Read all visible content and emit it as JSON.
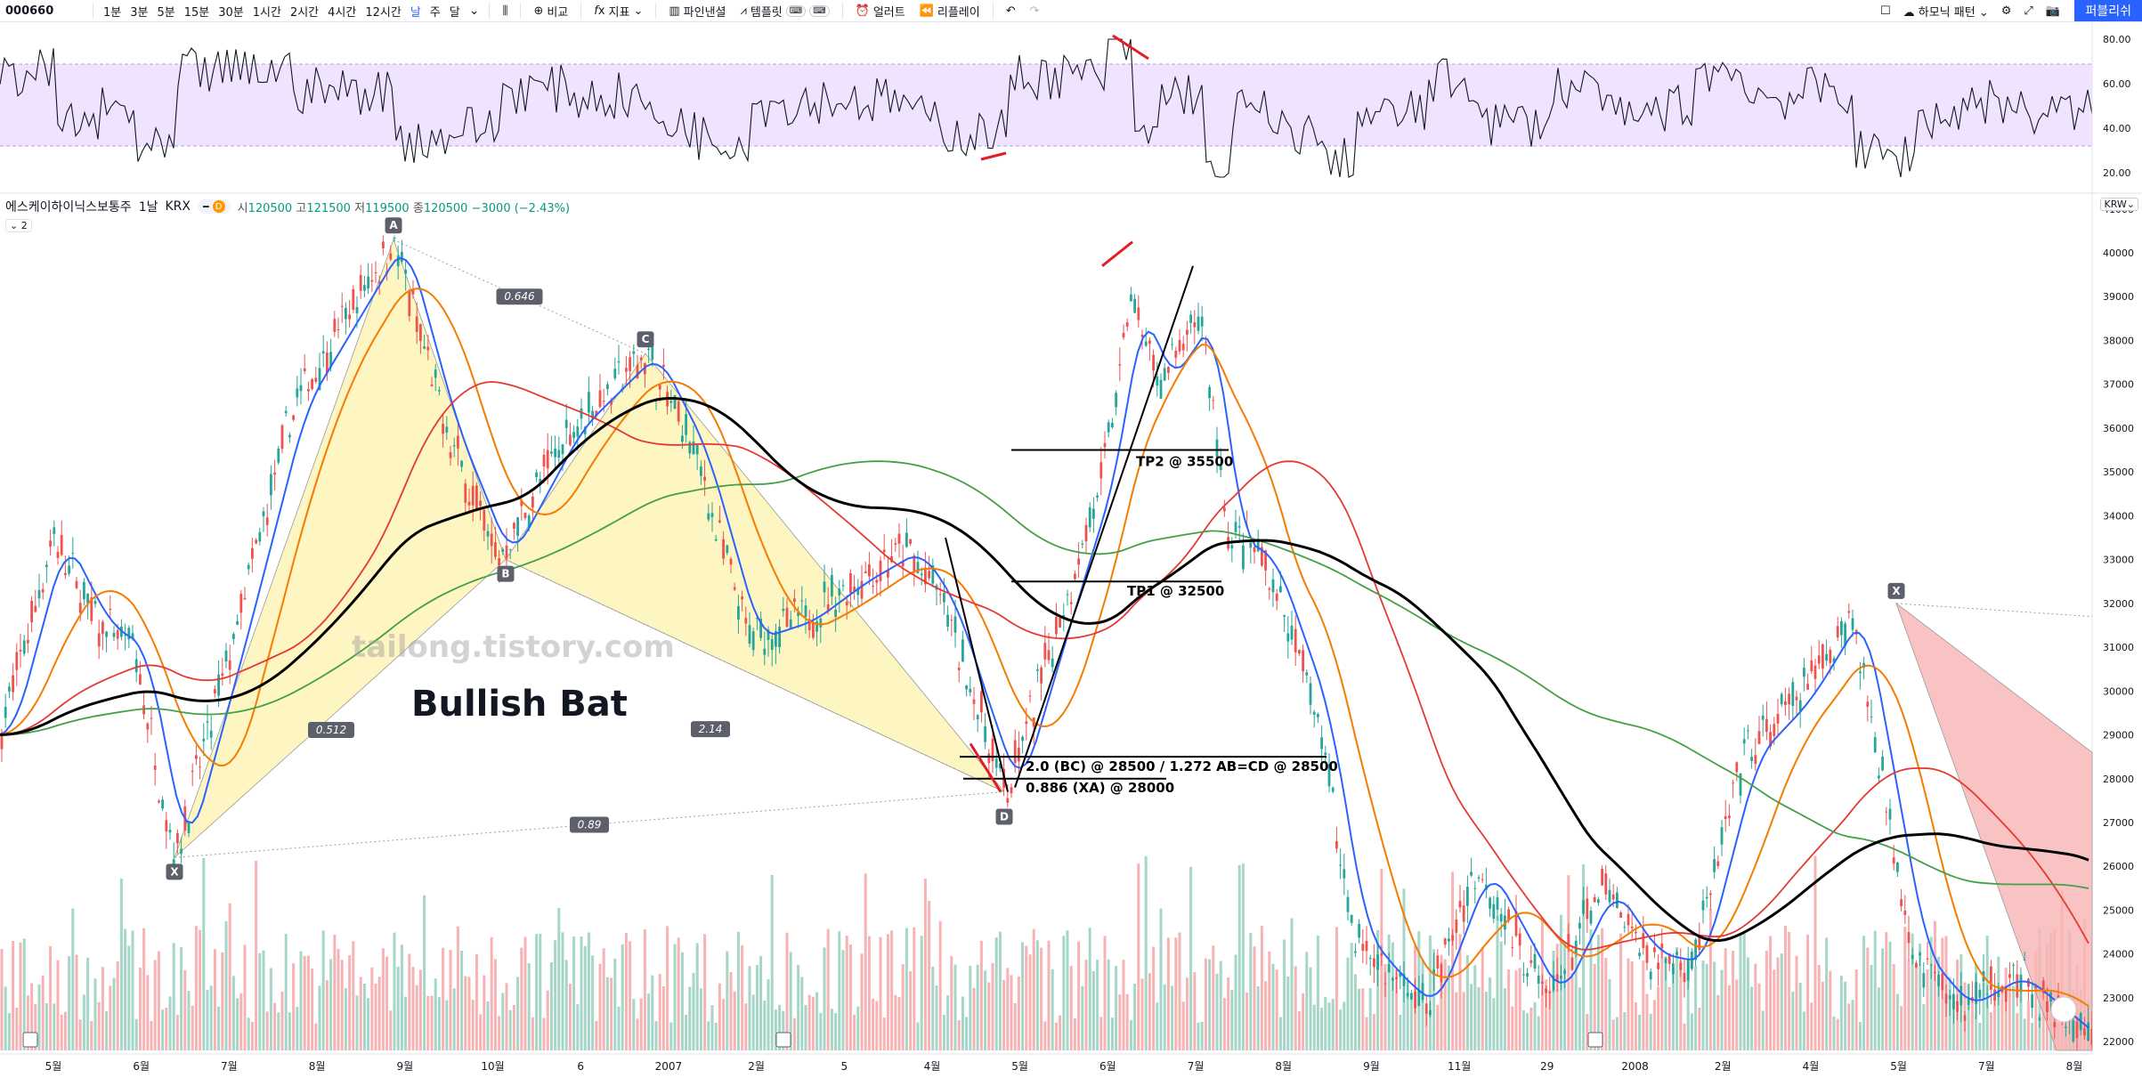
{
  "toolbar": {
    "symbol": "000660",
    "intervals": [
      "1분",
      "3분",
      "5분",
      "15분",
      "30분",
      "1시간",
      "2시간",
      "4시간",
      "12시간",
      "날",
      "주",
      "달"
    ],
    "active_interval": "날",
    "compare": "비교",
    "indicators": "지표",
    "pine_editor": "파인낸셜",
    "templates": "템플릿",
    "alert": "얼러트",
    "replay": "리플레이",
    "harmonic": "하모닉 패턴",
    "publish": "퍼블리쉬"
  },
  "legend": {
    "name": "에스케이하이닉스보통주",
    "interval": "1날",
    "exchange": "KRX",
    "open_label": "시",
    "open": "120500",
    "high_label": "고",
    "high": "121500",
    "low_label": "저",
    "low": "119500",
    "close_label": "종",
    "close": "120500",
    "change": "−3000 (−2.43%)",
    "badge": "D",
    "collapse": "2",
    "currency": "KRW"
  },
  "chart_data": [
    {
      "type": "line",
      "name": "RSI",
      "ylim": [
        12,
        84
      ],
      "yticks": [
        "80.00",
        "60.00",
        "40.00",
        "20.00"
      ],
      "band": [
        30,
        70
      ],
      "colors": {
        "line": "#131722",
        "band": "#f0e3ff"
      }
    },
    {
      "type": "candlestick",
      "ylim": [
        21800,
        41300
      ],
      "yticks": [
        "41000",
        "40000",
        "39000",
        "38000",
        "37000",
        "36000",
        "35000",
        "34000",
        "33000",
        "32000",
        "31000",
        "30000",
        "29000",
        "28000",
        "27000",
        "26000",
        "25000",
        "24000",
        "23000",
        "22000"
      ],
      "x_ticks": [
        "5월",
        "6월",
        "7월",
        "8월",
        "9월",
        "10월",
        "6",
        "2007",
        "2월",
        "5",
        "4월",
        "5월",
        "6월",
        "7월",
        "8월",
        "9월",
        "11월",
        "29",
        "2008",
        "2월",
        "4월",
        "5월",
        "7월",
        "8월"
      ],
      "pattern": {
        "title": "Bullish Bat",
        "points": [
          {
            "label": "X",
            "value": 26200
          },
          {
            "label": "A",
            "value": 40300
          },
          {
            "label": "B",
            "value": 33000
          },
          {
            "label": "C",
            "value": 37700
          },
          {
            "label": "D",
            "value": 27700
          }
        ],
        "ratios": [
          "0.646",
          "0.512",
          "2.14",
          "0.89"
        ],
        "levels": [
          {
            "label": "2.0 (BC) @ 28500 / 1.272 AB=CD @ 28500",
            "value": 28500
          },
          {
            "label": "0.886 (XA) @ 28000",
            "value": 28000
          },
          {
            "label": "TP1 @ 32500",
            "value": 32500
          },
          {
            "label": "TP2 @ 35500",
            "value": 35500
          }
        ]
      },
      "second_pattern_point": {
        "label": "X",
        "value": 32000
      },
      "watermark": "tailong.tistory.com",
      "colors": {
        "up": "#26a69a",
        "down": "#ef5350",
        "ema_fast": "#2962ff",
        "ema_mid": "#f57c00",
        "ma_red": "#e53935",
        "ma_green": "#43a047",
        "ma_black": "#000000",
        "pattern_fill": "#fdf3b7",
        "pattern2_fill": "#f9b4b4",
        "pen": "#e51c23"
      }
    }
  ]
}
